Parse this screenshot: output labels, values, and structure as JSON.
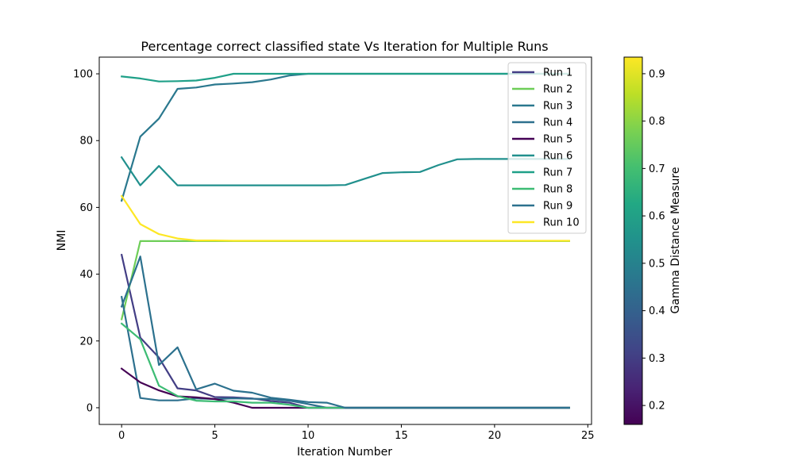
{
  "chart_data": {
    "type": "line",
    "title": "Percentage correct classified state Vs Iteration for Multiple Runs",
    "xlabel": "Iteration Number",
    "ylabel": "NMI",
    "xlim": [
      -1.2,
      25.2
    ],
    "ylim": [
      -5,
      105
    ],
    "xticks": [
      0,
      5,
      10,
      15,
      20,
      25
    ],
    "yticks": [
      0,
      20,
      40,
      60,
      80,
      100
    ],
    "legend_position": "top-right",
    "colorbar": {
      "label": "Gamma Distance Measure",
      "colormap": "viridis",
      "range": [
        0.16,
        0.935
      ],
      "ticks": [
        0.2,
        0.3,
        0.4,
        0.5,
        0.6,
        0.7,
        0.8,
        0.9
      ]
    },
    "x": [
      0,
      1,
      2,
      3,
      4,
      5,
      6,
      7,
      8,
      9,
      10,
      11,
      12,
      13,
      14,
      15,
      16,
      17,
      18,
      19,
      20,
      21,
      22,
      23,
      24
    ],
    "series": [
      {
        "name": "Run 1",
        "color": "#433e85",
        "values": [
          45.8,
          21,
          15,
          5.8,
          5.2,
          3.2,
          3.1,
          2.8,
          2.0,
          1.5,
          0,
          0,
          0,
          0,
          0,
          0,
          0,
          0,
          0,
          0,
          0,
          0,
          0,
          0,
          0
        ]
      },
      {
        "name": "Run 2",
        "color": "#6ece58",
        "values": [
          26.5,
          49.9,
          49.9,
          49.9,
          49.9,
          49.9,
          49.9,
          49.9,
          49.9,
          49.9,
          49.9,
          49.9,
          49.9,
          49.9,
          49.9,
          49.9,
          49.9,
          49.9,
          49.9,
          49.9,
          49.9,
          49.9,
          49.9,
          49.9,
          49.9
        ]
      },
      {
        "name": "Run 3",
        "color": "#2a788e",
        "values": [
          62.0,
          81.2,
          86.6,
          95.5,
          95.9,
          96.8,
          97.1,
          97.5,
          98.3,
          99.5,
          100,
          100,
          100,
          100,
          100,
          100,
          100,
          100,
          100,
          100,
          100,
          100,
          100,
          100,
          100
        ]
      },
      {
        "name": "Run 4",
        "color": "#2d708e",
        "values": [
          33.2,
          2.9,
          2.2,
          2.2,
          2.8,
          2.6,
          2.8,
          2.7,
          2.6,
          2.1,
          1.1,
          0,
          0,
          0,
          0,
          0,
          0,
          0,
          0,
          0,
          0,
          0,
          0,
          0,
          0
        ]
      },
      {
        "name": "Run 5",
        "color": "#440154",
        "values": [
          11.7,
          7.6,
          5.2,
          3.4,
          3.1,
          2.6,
          1.5,
          0,
          0,
          0,
          0,
          0,
          0,
          0,
          0,
          0,
          0,
          0,
          0,
          0,
          0,
          0,
          0,
          0,
          0
        ]
      },
      {
        "name": "Run 6",
        "color": "#21908d",
        "values": [
          75.0,
          66.6,
          72.4,
          66.6,
          66.6,
          66.6,
          66.6,
          66.6,
          66.6,
          66.6,
          66.6,
          66.6,
          66.7,
          68.5,
          70.3,
          70.5,
          70.6,
          72.7,
          74.4,
          74.5,
          74.5,
          74.5,
          74.5,
          74.5,
          74.5
        ]
      },
      {
        "name": "Run 7",
        "color": "#1fa088",
        "values": [
          99.2,
          98.6,
          97.7,
          97.8,
          98.0,
          98.8,
          100,
          100,
          100,
          100,
          100,
          100,
          100,
          100,
          100,
          100,
          100,
          100,
          100,
          100,
          100,
          100,
          100,
          100,
          100
        ]
      },
      {
        "name": "Run 8",
        "color": "#3dbc74",
        "values": [
          25.2,
          20.5,
          6.6,
          3.5,
          2.1,
          1.9,
          1.9,
          1.5,
          1.5,
          0.9,
          0,
          0,
          0,
          0,
          0,
          0,
          0,
          0,
          0,
          0,
          0,
          0,
          0,
          0,
          0
        ]
      },
      {
        "name": "Run 9",
        "color": "#2c718e",
        "values": [
          30.3,
          45.3,
          12.8,
          18.1,
          5.5,
          7.2,
          5.1,
          4.5,
          3.0,
          2.4,
          1.7,
          1.5,
          0,
          0,
          0,
          0,
          0,
          0,
          0,
          0,
          0,
          0,
          0,
          0,
          0
        ]
      },
      {
        "name": "Run 10",
        "color": "#fde725",
        "values": [
          63.4,
          55.0,
          52.0,
          50.7,
          50.1,
          50.1,
          50.0,
          50.0,
          50.0,
          50.0,
          50.0,
          50.0,
          50.0,
          50.0,
          50.0,
          50.0,
          50.0,
          50.0,
          50.0,
          50.0,
          50.0,
          50.0,
          50.0,
          50.0,
          50.0
        ]
      }
    ]
  }
}
